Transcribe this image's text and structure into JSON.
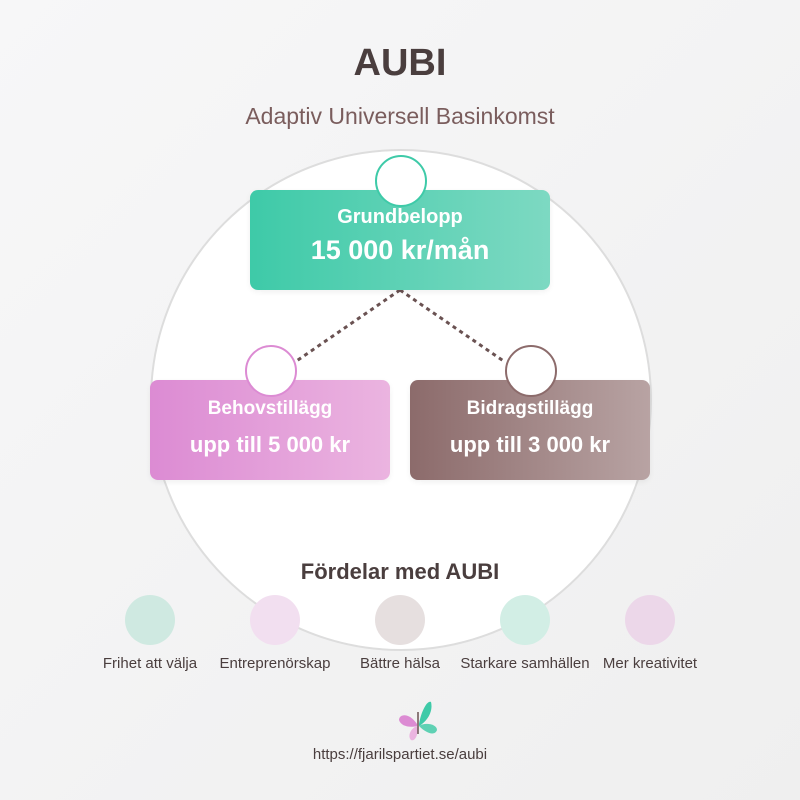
{
  "title": "AUBI",
  "subtitle": "Adaptiv Universell Basinkomst",
  "colors": {
    "teal": "#3ecaa8",
    "pink": "#dc8bd3",
    "brown": "#8c6b6b",
    "dark_text": "#4a3e3e"
  },
  "nodes": {
    "grundbelopp": {
      "label": "Grundbelopp",
      "value": "15 000 kr/mån"
    },
    "behovstillagg": {
      "label": "Behovstillägg",
      "value": "upp till 5 000 kr"
    },
    "bidragstillagg": {
      "label": "Bidragstillägg",
      "value": "upp till 3 000 kr"
    }
  },
  "benefits": {
    "heading": "Fördelar med AUBI",
    "items": [
      {
        "label": "Frihet att välja",
        "color": "#cfe9e1"
      },
      {
        "label": "Entreprenörskap",
        "color": "#f2dff0"
      },
      {
        "label": "Bättre hälsa",
        "color": "#e6dfdf"
      },
      {
        "label": "Starkare samhällen",
        "color": "#d2eee5"
      },
      {
        "label": "Mer kreativitet",
        "color": "#ecd7e9"
      }
    ]
  },
  "footer": {
    "logo_icon": "butterfly-icon",
    "url": "https://fjarilspartiet.se/aubi"
  }
}
